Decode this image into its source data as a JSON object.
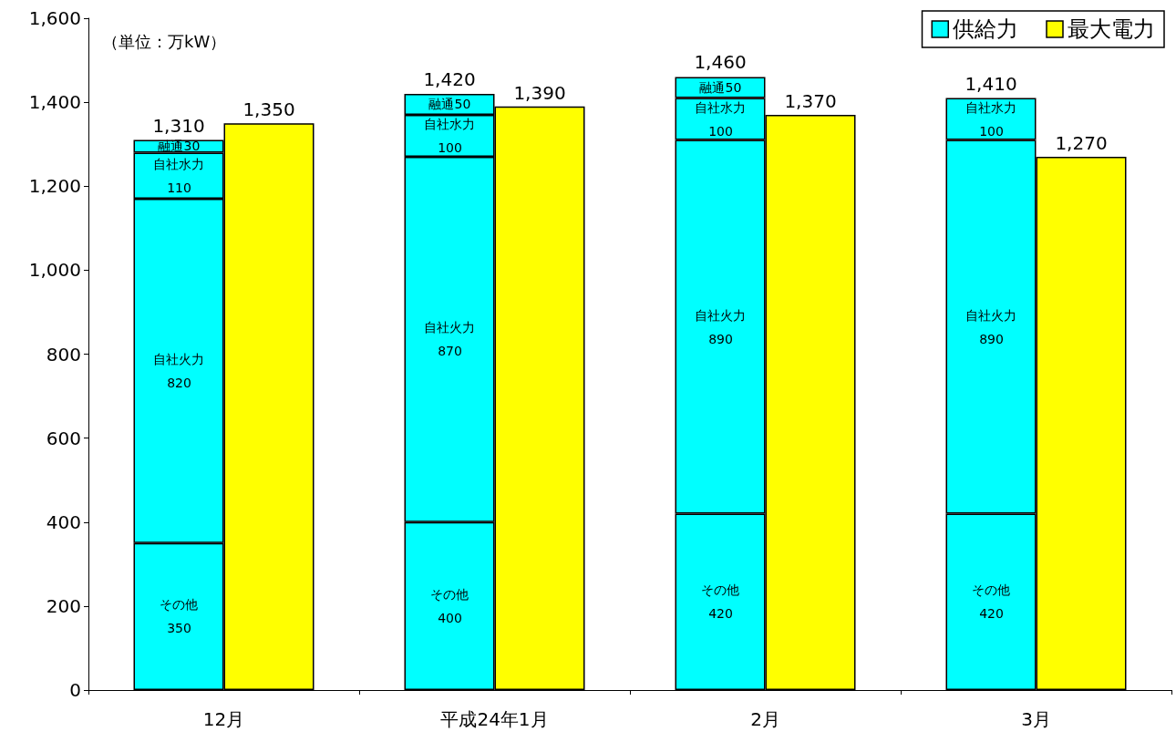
{
  "chart_data": {
    "type": "bar",
    "stacked": true,
    "categories": [
      null,
      "12月",
      null,
      null,
      "平成24年1月",
      null,
      null,
      "2月",
      null,
      null,
      "3月",
      null,
      null
    ],
    "ylim": [
      0,
      1600
    ],
    "yticks": [
      0,
      {
        "value": 200,
        "label": "200"
      },
      {
        "value": 400,
        "label": "400"
      },
      {
        "value": 600,
        "label": "600"
      },
      {
        "value": 800,
        "label": "800"
      },
      {
        "value": 1000,
        "label": "1,000"
      },
      {
        "value": 1200,
        "label": "1,200"
      },
      {
        "value": 1400,
        "label": "1,400"
      },
      {
        "value": 1600,
        "label": "1,600"
      }
    ],
    "grid": false,
    "legend": "top right",
    "annotations": [
      "（単位：万kW）"
    ],
    "totals": [
      null,
      "1,310",
      null,
      null,
      "1,420",
      null,
      null,
      "1,460",
      null,
      null,
      "1,410",
      null,
      null
    ],
    "series": [
      {
        "name": "その他",
        "color": "#00ffff",
        "values": [
          null,
          350,
          null,
          null,
          400,
          null,
          null,
          420,
          null,
          null,
          420,
          null,
          null
        ],
        "value_labels": [
          null,
          "350",
          null,
          null,
          "400",
          null,
          null,
          "420",
          null,
          null,
          "420",
          null,
          null
        ]
      },
      {
        "name": "自社火力",
        "color": "#00ffff",
        "values": [
          null,
          820,
          null,
          null,
          870,
          null,
          null,
          890,
          null,
          null,
          890,
          null,
          null
        ],
        "value_labels": [
          null,
          "820",
          null,
          null,
          "870",
          null,
          null,
          "890",
          null,
          null,
          "890",
          null,
          null
        ]
      },
      {
        "name": "自社水力",
        "color": "#00ffff",
        "values": [
          null,
          110,
          null,
          null,
          100,
          null,
          null,
          100,
          null,
          null,
          100,
          null,
          null
        ],
        "value_labels": [
          null,
          "110",
          null,
          null,
          "100",
          null,
          null,
          "100",
          null,
          null,
          "100",
          null,
          null
        ]
      },
      {
        "name": "融通",
        "color": "#00ffff",
        "values": [
          null,
          30,
          null,
          null,
          50,
          null,
          null,
          50,
          null,
          null,
          null,
          null,
          null
        ],
        "value_labels": [
          null,
          "30",
          null,
          null,
          "50",
          null,
          null,
          "50",
          null,
          null,
          null,
          null,
          null
        ]
      },
      {
        "name": "供給力",
        "color": "#00ffff",
        "values": [
          null,
          null,
          null,
          null,
          null,
          null,
          null,
          null,
          null,
          null,
          null,
          null,
          null
        ]
      },
      {
        "name": "最大電力",
        "color": "#ffff00",
        "values": [
          null,
          null,
          1350,
          null,
          null,
          1390,
          null,
          null,
          1370,
          null,
          null,
          1270,
          null
        ],
        "value_labels": [
          null,
          null,
          "1,350",
          null,
          null,
          "1,390",
          null,
          null,
          "1,370",
          null,
          null,
          "1,270",
          null
        ]
      }
    ]
  }
}
